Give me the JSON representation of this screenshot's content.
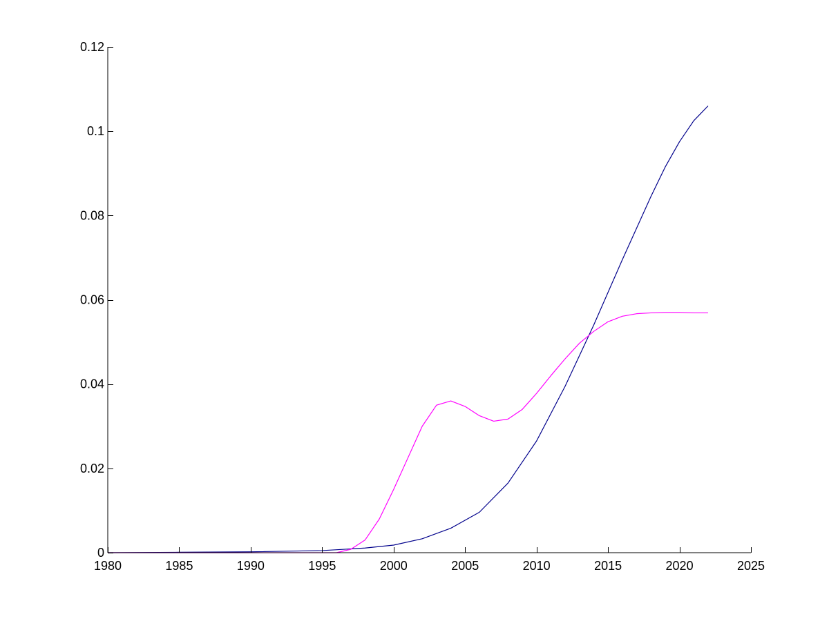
{
  "chart_data": {
    "type": "line",
    "title": "",
    "xlabel": "",
    "ylabel": "",
    "xlim": [
      1980,
      2025
    ],
    "ylim": [
      0,
      0.12
    ],
    "xticks": [
      1980,
      1985,
      1990,
      1995,
      2000,
      2005,
      2010,
      2015,
      2020,
      2025
    ],
    "xtick_labels": [
      "1980",
      "1985",
      "1990",
      "1995",
      "2000",
      "2005",
      "2010",
      "2015",
      "2020",
      "2025"
    ],
    "yticks": [
      0,
      0.02,
      0.04,
      0.06,
      0.08,
      0.1,
      0.12
    ],
    "ytick_labels": [
      "0",
      "0.02",
      "0.04",
      "0.06",
      "0.08",
      "0.1",
      "0.12"
    ],
    "grid": false,
    "legend": "none",
    "series": [
      {
        "color": "#00008b",
        "x": [
          1980,
          1985,
          1990,
          1995,
          1998,
          2000,
          2002,
          2004,
          2006,
          2008,
          2010,
          2012,
          2014,
          2016,
          2018,
          2019,
          2020,
          2021,
          2022
        ],
        "y": [
          0,
          0.0001,
          0.0002,
          0.0005,
          0.0011,
          0.0018,
          0.0033,
          0.0058,
          0.0096,
          0.0165,
          0.0265,
          0.0395,
          0.054,
          0.0695,
          0.0845,
          0.0915,
          0.0975,
          0.1025,
          0.106
        ]
      },
      {
        "color": "#ff00ff",
        "x": [
          1980,
          1996,
          1997,
          1998,
          1999,
          2000,
          2001,
          2002,
          2003,
          2004,
          2005,
          2006,
          2007,
          2008,
          2009,
          2010,
          2011,
          2012,
          2013,
          2014,
          2015,
          2016,
          2017,
          2018,
          2019,
          2020,
          2021,
          2022
        ],
        "y": [
          0,
          0,
          0.0008,
          0.003,
          0.008,
          0.015,
          0.0225,
          0.03,
          0.035,
          0.036,
          0.0347,
          0.0325,
          0.0312,
          0.0317,
          0.034,
          0.0378,
          0.042,
          0.046,
          0.0497,
          0.0525,
          0.0548,
          0.0561,
          0.0567,
          0.0569,
          0.057,
          0.057,
          0.0569,
          0.0569
        ]
      }
    ]
  }
}
